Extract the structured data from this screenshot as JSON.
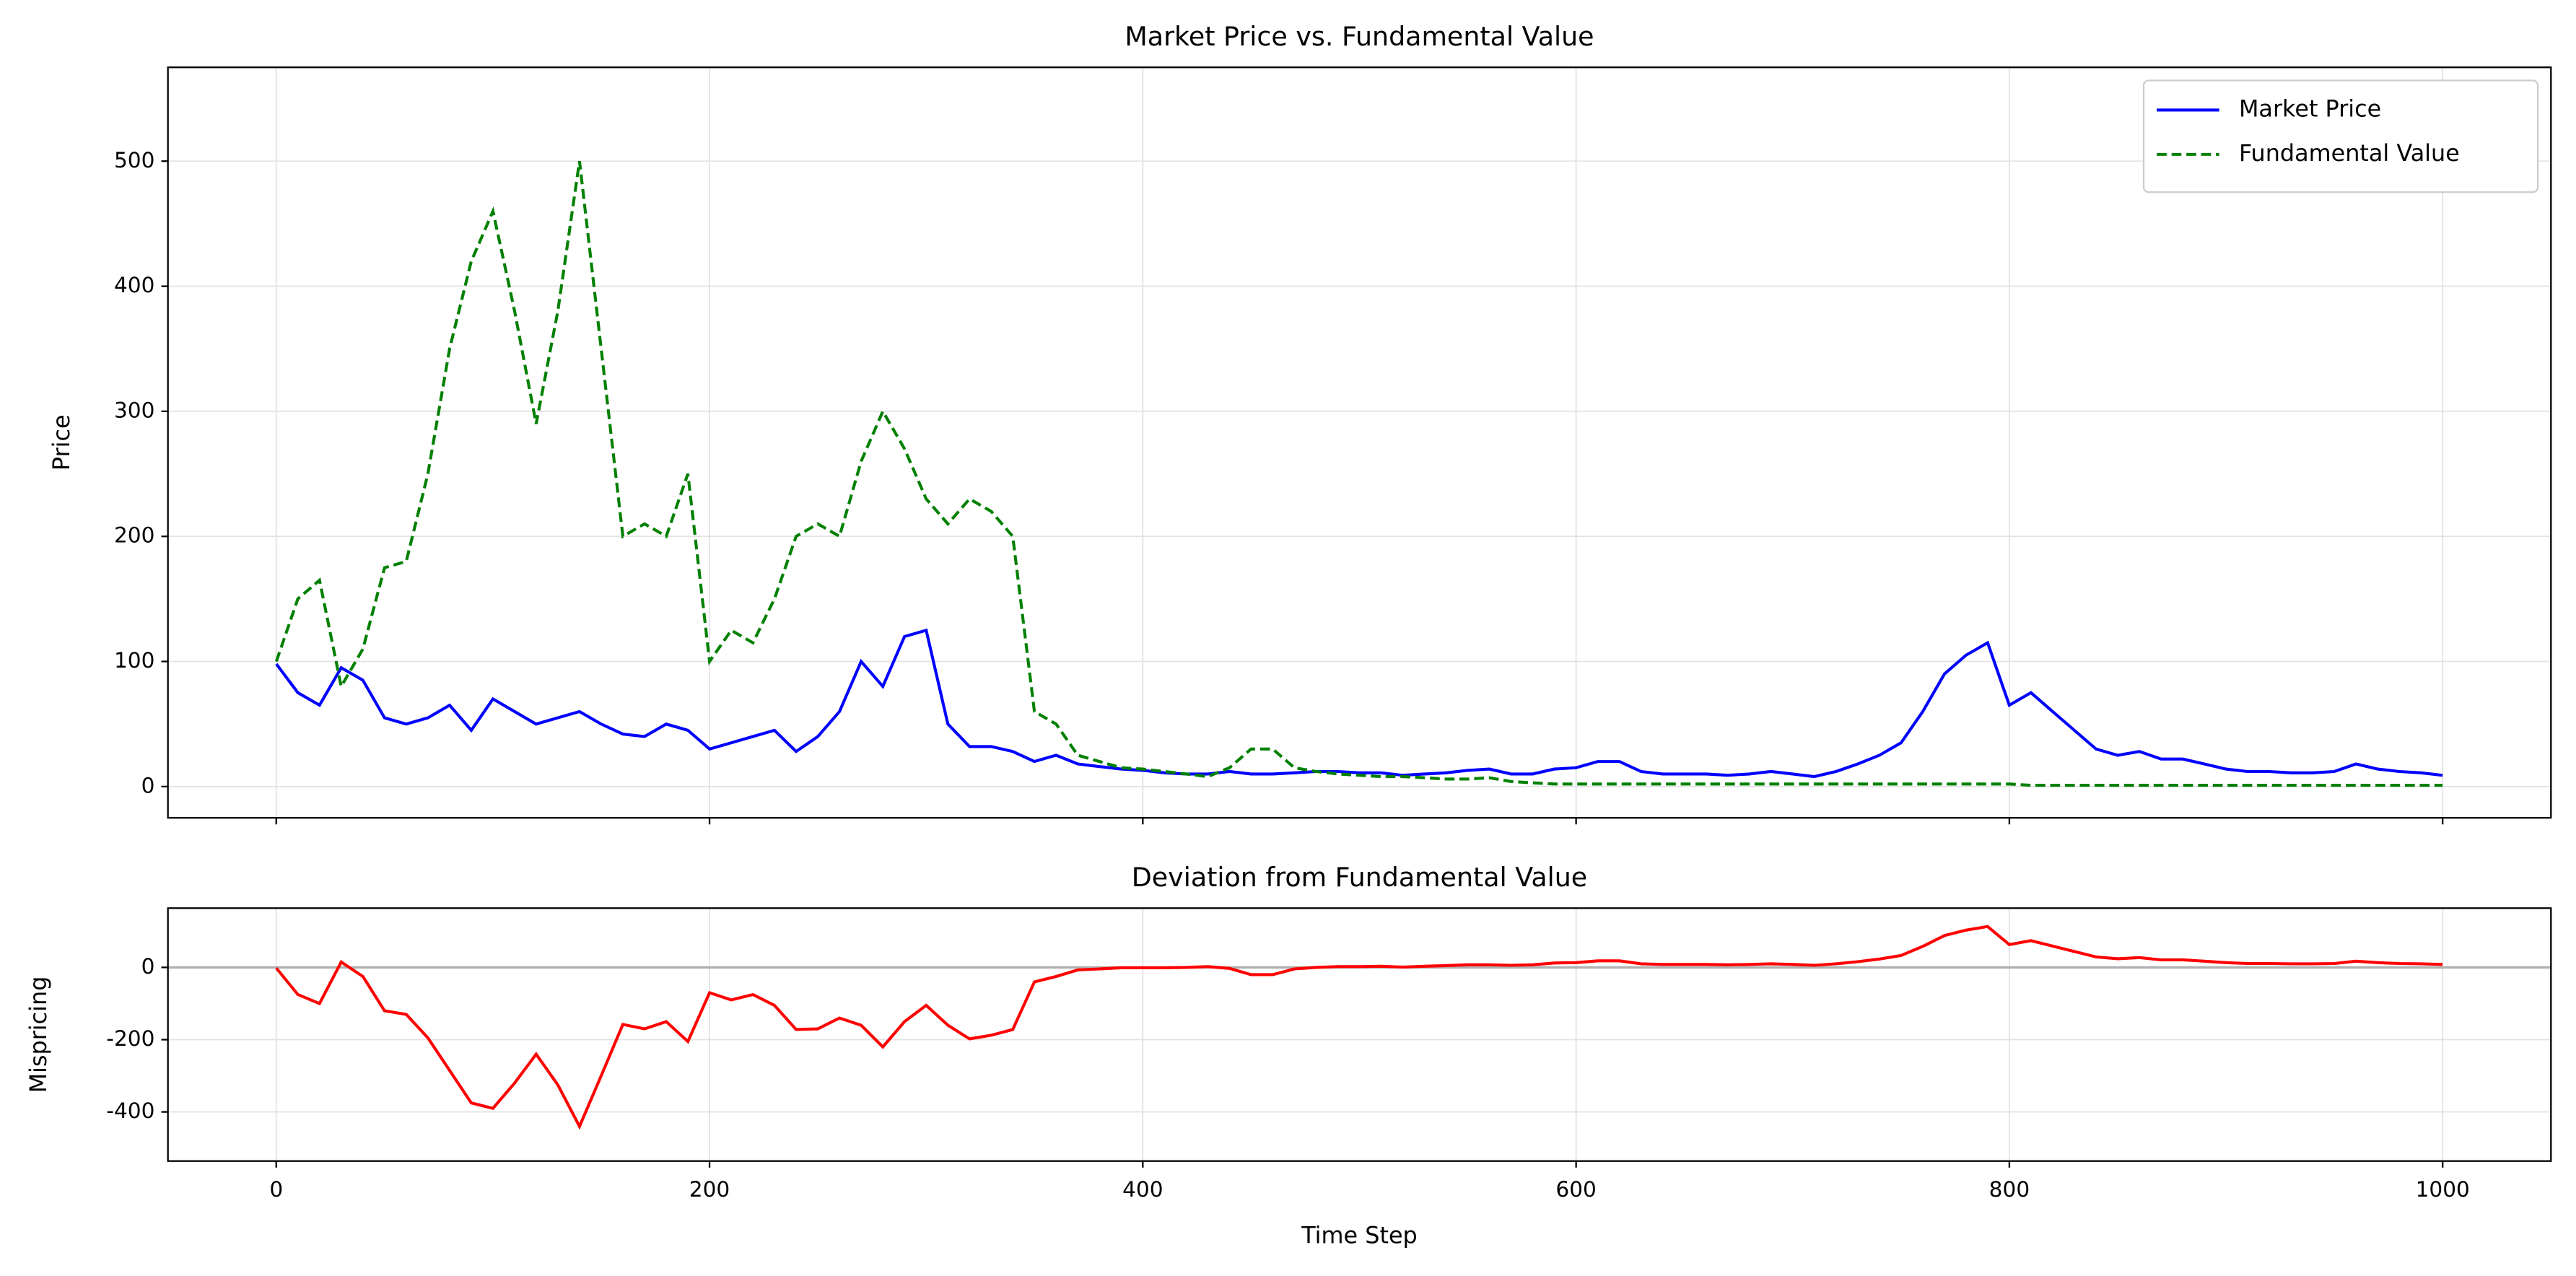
{
  "chart_data": [
    {
      "type": "line",
      "title": "Market Price vs. Fundamental Value",
      "y_label": "Price",
      "legend": "upper right",
      "grid": true,
      "x": [
        0,
        10,
        20,
        30,
        40,
        50,
        60,
        70,
        80,
        90,
        100,
        110,
        120,
        130,
        140,
        150,
        160,
        170,
        180,
        190,
        200,
        210,
        220,
        230,
        240,
        250,
        260,
        270,
        280,
        290,
        300,
        310,
        320,
        330,
        340,
        350,
        360,
        370,
        380,
        390,
        400,
        410,
        420,
        430,
        440,
        450,
        460,
        470,
        480,
        490,
        500,
        510,
        520,
        530,
        540,
        550,
        560,
        570,
        580,
        590,
        600,
        610,
        620,
        630,
        640,
        650,
        660,
        670,
        680,
        690,
        700,
        710,
        720,
        730,
        740,
        750,
        760,
        770,
        780,
        790,
        800,
        810,
        820,
        830,
        840,
        850,
        860,
        870,
        880,
        890,
        900,
        910,
        920,
        930,
        940,
        950,
        960,
        970,
        980,
        990,
        1000
      ],
      "series": [
        {
          "name": "Market Price",
          "color": "#0000ff",
          "dash": "solid",
          "values": [
            98,
            75,
            65,
            95,
            85,
            55,
            50,
            55,
            65,
            45,
            70,
            60,
            50,
            55,
            60,
            50,
            42,
            40,
            50,
            45,
            30,
            35,
            40,
            45,
            28,
            40,
            60,
            100,
            80,
            120,
            125,
            50,
            32,
            32,
            28,
            20,
            25,
            18,
            16,
            14,
            13,
            11,
            10,
            10,
            12,
            10,
            10,
            11,
            12,
            12,
            11,
            11,
            9,
            10,
            11,
            13,
            14,
            10,
            10,
            14,
            15,
            20,
            20,
            12,
            10,
            10,
            10,
            9,
            10,
            12,
            10,
            8,
            12,
            18,
            25,
            35,
            60,
            90,
            105,
            115,
            65,
            75,
            60,
            45,
            30,
            25,
            28,
            22,
            22,
            18,
            14,
            12,
            12,
            11,
            11,
            12,
            18,
            14,
            12,
            11,
            9
          ]
        },
        {
          "name": "Fundamental Value",
          "color": "#008000",
          "dash": "dashed",
          "values": [
            100,
            150,
            165,
            80,
            110,
            175,
            180,
            250,
            350,
            420,
            460,
            380,
            290,
            380,
            500,
            350,
            200,
            210,
            200,
            250,
            100,
            125,
            115,
            150,
            200,
            210,
            200,
            260,
            300,
            270,
            230,
            210,
            230,
            220,
            200,
            60,
            50,
            25,
            20,
            15,
            14,
            12,
            10,
            8,
            15,
            30,
            30,
            15,
            12,
            10,
            9,
            8,
            8,
            7,
            6,
            6,
            7,
            4,
            3,
            2,
            2,
            2,
            2,
            2,
            2,
            2,
            2,
            2,
            2,
            2,
            2,
            2,
            2,
            2,
            2,
            2,
            2,
            2,
            2,
            2,
            2,
            1,
            1,
            1,
            1,
            1,
            1,
            1,
            1,
            1,
            1,
            1,
            1,
            1,
            1,
            1,
            1,
            1,
            1,
            1,
            1
          ]
        }
      ],
      "xlim": [
        -50,
        1050
      ],
      "xticks": [
        0,
        200,
        400,
        600,
        800,
        1000
      ],
      "ylim": [
        -25,
        575
      ],
      "yticks": [
        0,
        100,
        200,
        300,
        400,
        500
      ]
    },
    {
      "type": "line",
      "title": "Deviation from Fundamental Value",
      "x_label": "Time Step",
      "y_label": "Mispricing",
      "grid": true,
      "hline": 0,
      "x": [
        0,
        10,
        20,
        30,
        40,
        50,
        60,
        70,
        80,
        90,
        100,
        110,
        120,
        130,
        140,
        150,
        160,
        170,
        180,
        190,
        200,
        210,
        220,
        230,
        240,
        250,
        260,
        270,
        280,
        290,
        300,
        310,
        320,
        330,
        340,
        350,
        360,
        370,
        380,
        390,
        400,
        410,
        420,
        430,
        440,
        450,
        460,
        470,
        480,
        490,
        500,
        510,
        520,
        530,
        540,
        550,
        560,
        570,
        580,
        590,
        600,
        610,
        620,
        630,
        640,
        650,
        660,
        670,
        680,
        690,
        700,
        710,
        720,
        730,
        740,
        750,
        760,
        770,
        780,
        790,
        800,
        810,
        820,
        830,
        840,
        850,
        860,
        870,
        880,
        890,
        900,
        910,
        920,
        930,
        940,
        950,
        960,
        970,
        980,
        990,
        1000
      ],
      "series": [
        {
          "name": "Mispricing",
          "color": "#ff0000",
          "dash": "solid",
          "values": [
            -2,
            -75,
            -100,
            15,
            -25,
            -120,
            -130,
            -195,
            -285,
            -375,
            -390,
            -320,
            -240,
            -325,
            -440,
            -300,
            -158,
            -170,
            -150,
            -205,
            -70,
            -90,
            -75,
            -105,
            -172,
            -170,
            -140,
            -160,
            -220,
            -150,
            -105,
            -160,
            -198,
            -188,
            -172,
            -40,
            -25,
            -7,
            -4,
            -1,
            -1,
            -1,
            0,
            2,
            -3,
            -20,
            -20,
            -4,
            0,
            2,
            2,
            3,
            1,
            3,
            5,
            7,
            7,
            6,
            7,
            12,
            13,
            18,
            18,
            10,
            8,
            8,
            8,
            7,
            8,
            10,
            8,
            6,
            10,
            16,
            23,
            33,
            58,
            88,
            103,
            113,
            63,
            74,
            59,
            44,
            29,
            24,
            27,
            21,
            21,
            17,
            13,
            11,
            11,
            10,
            10,
            11,
            17,
            13,
            11,
            10,
            8
          ]
        }
      ],
      "xlim": [
        -50,
        1050
      ],
      "xticks": [
        0,
        200,
        400,
        600,
        800,
        1000
      ],
      "ylim": [
        -536,
        164
      ],
      "yticks": [
        -400,
        -200,
        0
      ]
    }
  ]
}
